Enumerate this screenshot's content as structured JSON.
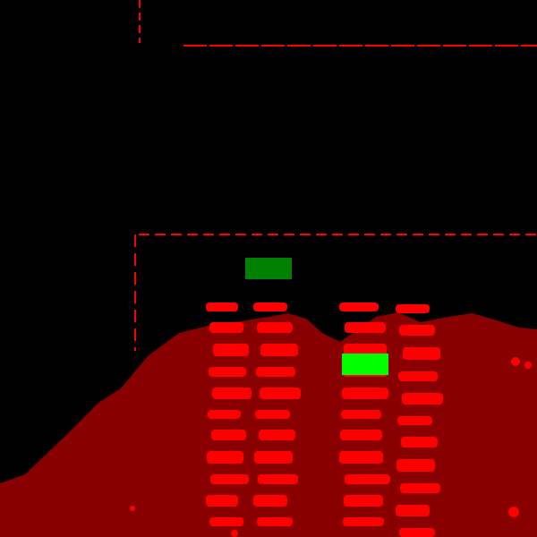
{
  "colors": {
    "background": "#000000",
    "wall": "#ff0000",
    "terrain": "#880000",
    "target_marker": "#00ff00",
    "source_marker": "#008000"
  },
  "icons": {
    "source_marker": "dark-green-block",
    "target_marker": "bright-green-block"
  }
}
